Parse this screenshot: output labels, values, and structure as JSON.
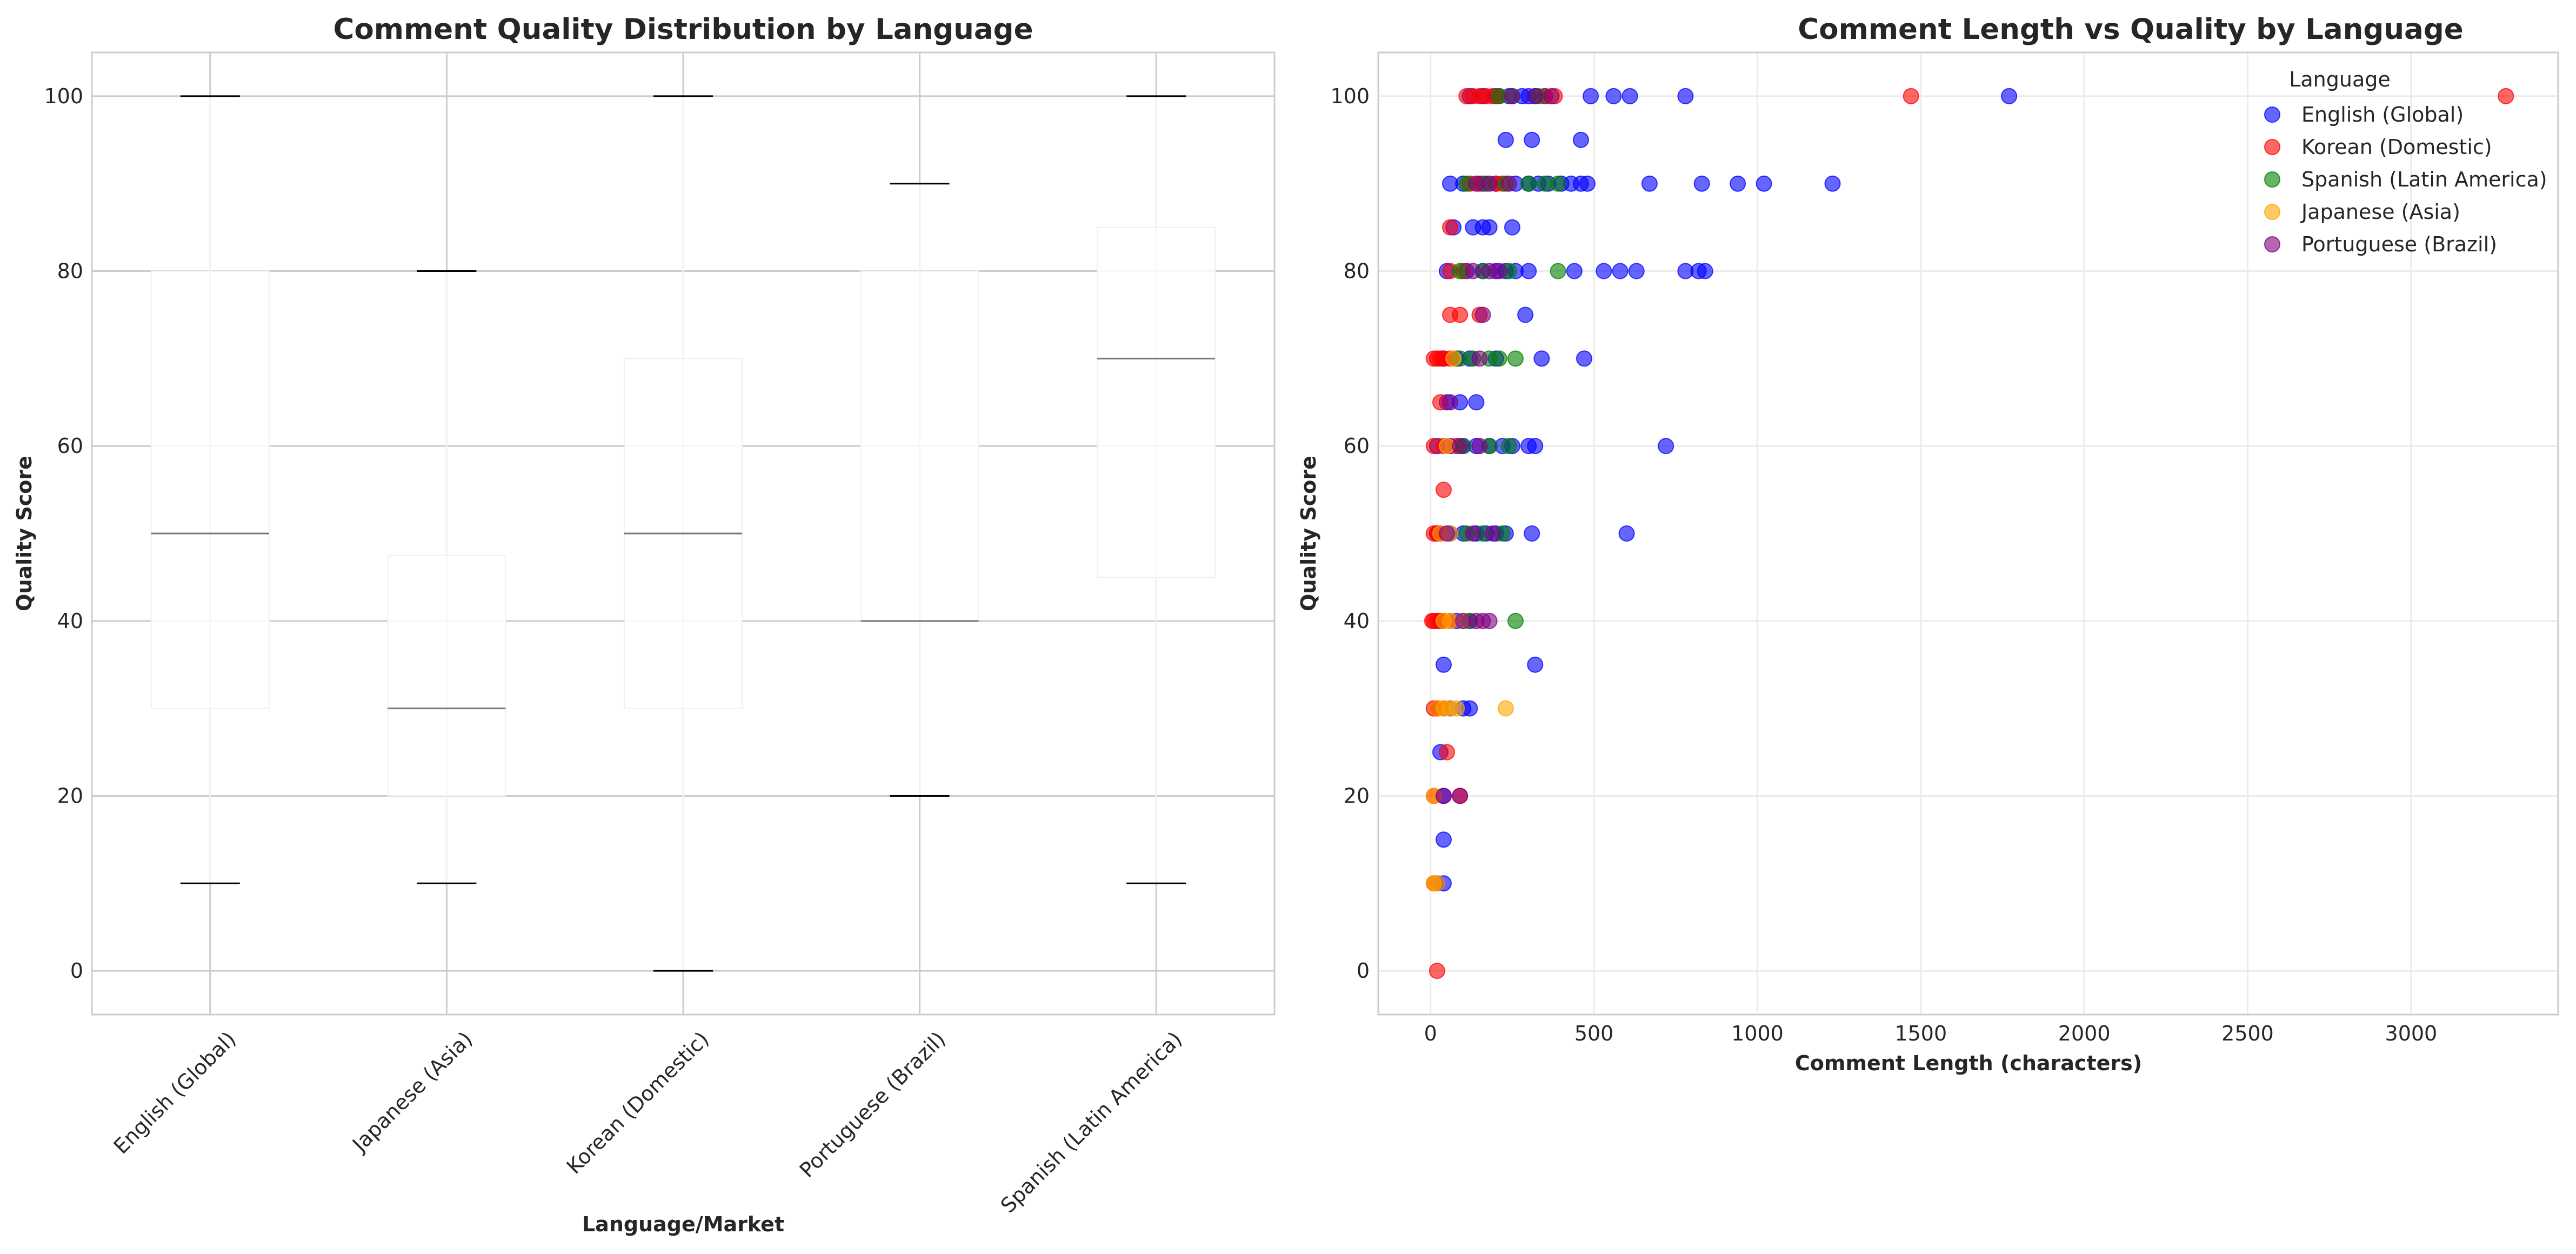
{
  "chart_data": [
    {
      "type": "box",
      "title": "Comment Quality Distribution by Language",
      "xlabel": "Language/Market",
      "ylabel": "Quality Score",
      "ylim": [
        -5,
        105
      ],
      "yticks": [
        0,
        20,
        40,
        60,
        80,
        100
      ],
      "grid": true,
      "categories": [
        "English (Global)",
        "Japanese (Asia)",
        "Korean (Domestic)",
        "Portuguese (Brazil)",
        "Spanish (Latin America)"
      ],
      "boxes": [
        {
          "category": "English (Global)",
          "whisker_low": 10,
          "q1": 30,
          "median": 50,
          "q3": 80,
          "whisker_high": 100
        },
        {
          "category": "Japanese (Asia)",
          "whisker_low": 10,
          "q1": 20,
          "median": 30,
          "q3": 47.5,
          "whisker_high": 80
        },
        {
          "category": "Korean (Domestic)",
          "whisker_low": 0,
          "q1": 30,
          "median": 50,
          "q3": 70,
          "whisker_high": 100
        },
        {
          "category": "Portuguese (Brazil)",
          "whisker_low": 20,
          "q1": 40,
          "median": 40,
          "q3": 80,
          "whisker_high": 90
        },
        {
          "category": "Spanish (Latin America)",
          "whisker_low": 10,
          "q1": 45,
          "median": 70,
          "q3": 85,
          "whisker_high": 100
        }
      ]
    },
    {
      "type": "scatter",
      "title": "Comment Length vs Quality by Language",
      "xlabel": "Comment Length (characters)",
      "ylabel": "Quality Score",
      "xlim": [
        -160,
        3450
      ],
      "ylim": [
        -5,
        105
      ],
      "xticks": [
        0,
        500,
        1000,
        1500,
        2000,
        2500,
        3000
      ],
      "yticks": [
        0,
        20,
        40,
        60,
        80,
        100
      ],
      "grid": true,
      "legend_title": "Language",
      "legend_position": "top-right",
      "series": [
        {
          "name": "English (Global)",
          "color": "#0000ff",
          "points": [
            [
              120,
              100
            ],
            [
              160,
              100
            ],
            [
              200,
              100
            ],
            [
              240,
              100
            ],
            [
              280,
              100
            ],
            [
              300,
              100
            ],
            [
              320,
              100
            ],
            [
              350,
              100
            ],
            [
              490,
              100
            ],
            [
              560,
              100
            ],
            [
              610,
              100
            ],
            [
              780,
              100
            ],
            [
              1770,
              100
            ],
            [
              230,
              95
            ],
            [
              310,
              95
            ],
            [
              460,
              95
            ],
            [
              60,
              90
            ],
            [
              100,
              90
            ],
            [
              160,
              90
            ],
            [
              200,
              90
            ],
            [
              260,
              90
            ],
            [
              300,
              90
            ],
            [
              330,
              90
            ],
            [
              360,
              90
            ],
            [
              400,
              90
            ],
            [
              430,
              90
            ],
            [
              460,
              90
            ],
            [
              480,
              90
            ],
            [
              670,
              90
            ],
            [
              830,
              90
            ],
            [
              940,
              90
            ],
            [
              1020,
              90
            ],
            [
              1230,
              90
            ],
            [
              70,
              85
            ],
            [
              130,
              85
            ],
            [
              160,
              85
            ],
            [
              180,
              85
            ],
            [
              250,
              85
            ],
            [
              50,
              80
            ],
            [
              110,
              80
            ],
            [
              160,
              80
            ],
            [
              200,
              80
            ],
            [
              230,
              80
            ],
            [
              260,
              80
            ],
            [
              300,
              80
            ],
            [
              440,
              80
            ],
            [
              530,
              80
            ],
            [
              580,
              80
            ],
            [
              630,
              80
            ],
            [
              780,
              80
            ],
            [
              820,
              80
            ],
            [
              840,
              80
            ],
            [
              290,
              75
            ],
            [
              40,
              70
            ],
            [
              80,
              70
            ],
            [
              120,
              70
            ],
            [
              200,
              70
            ],
            [
              340,
              70
            ],
            [
              470,
              70
            ],
            [
              50,
              65
            ],
            [
              90,
              65
            ],
            [
              140,
              65
            ],
            [
              20,
              60
            ],
            [
              60,
              60
            ],
            [
              100,
              60
            ],
            [
              140,
              60
            ],
            [
              180,
              60
            ],
            [
              220,
              60
            ],
            [
              250,
              60
            ],
            [
              300,
              60
            ],
            [
              320,
              60
            ],
            [
              720,
              60
            ],
            [
              20,
              50
            ],
            [
              60,
              50
            ],
            [
              100,
              50
            ],
            [
              140,
              50
            ],
            [
              170,
              50
            ],
            [
              200,
              50
            ],
            [
              230,
              50
            ],
            [
              310,
              50
            ],
            [
              600,
              50
            ],
            [
              30,
              40
            ],
            [
              80,
              40
            ],
            [
              120,
              40
            ],
            [
              40,
              35
            ],
            [
              320,
              35
            ],
            [
              20,
              30
            ],
            [
              60,
              30
            ],
            [
              100,
              30
            ],
            [
              120,
              30
            ],
            [
              30,
              25
            ],
            [
              40,
              20
            ],
            [
              40,
              15
            ],
            [
              20,
              10
            ],
            [
              40,
              10
            ]
          ]
        },
        {
          "name": "Korean (Domestic)",
          "color": "#ff0000",
          "points": [
            [
              110,
              100
            ],
            [
              130,
              100
            ],
            [
              150,
              100
            ],
            [
              170,
              100
            ],
            [
              190,
              100
            ],
            [
              210,
              100
            ],
            [
              350,
              100
            ],
            [
              380,
              100
            ],
            [
              1470,
              100
            ],
            [
              3290,
              100
            ],
            [
              120,
              90
            ],
            [
              150,
              90
            ],
            [
              200,
              90
            ],
            [
              220,
              90
            ],
            [
              60,
              85
            ],
            [
              60,
              80
            ],
            [
              100,
              80
            ],
            [
              60,
              75
            ],
            [
              90,
              75
            ],
            [
              150,
              75
            ],
            [
              10,
              70
            ],
            [
              20,
              70
            ],
            [
              30,
              70
            ],
            [
              40,
              70
            ],
            [
              60,
              70
            ],
            [
              30,
              65
            ],
            [
              10,
              60
            ],
            [
              40,
              60
            ],
            [
              80,
              60
            ],
            [
              40,
              55
            ],
            [
              10,
              50
            ],
            [
              20,
              50
            ],
            [
              30,
              50
            ],
            [
              5,
              40
            ],
            [
              10,
              40
            ],
            [
              20,
              40
            ],
            [
              30,
              40
            ],
            [
              40,
              40
            ],
            [
              60,
              40
            ],
            [
              10,
              30
            ],
            [
              20,
              30
            ],
            [
              40,
              30
            ],
            [
              50,
              25
            ],
            [
              10,
              20
            ],
            [
              90,
              20
            ],
            [
              10,
              10
            ],
            [
              20,
              0
            ]
          ]
        },
        {
          "name": "Spanish (Latin America)",
          "color": "#008000",
          "points": [
            [
              210,
              100
            ],
            [
              250,
              100
            ],
            [
              330,
              100
            ],
            [
              110,
              90
            ],
            [
              170,
              90
            ],
            [
              230,
              90
            ],
            [
              300,
              90
            ],
            [
              350,
              90
            ],
            [
              390,
              90
            ],
            [
              90,
              80
            ],
            [
              160,
              80
            ],
            [
              240,
              80
            ],
            [
              390,
              80
            ],
            [
              90,
              70
            ],
            [
              130,
              70
            ],
            [
              180,
              70
            ],
            [
              210,
              70
            ],
            [
              260,
              70
            ],
            [
              100,
              60
            ],
            [
              180,
              60
            ],
            [
              240,
              60
            ],
            [
              110,
              50
            ],
            [
              160,
              50
            ],
            [
              220,
              50
            ],
            [
              120,
              40
            ],
            [
              260,
              40
            ]
          ]
        },
        {
          "name": "Japanese (Asia)",
          "color": "#ffa500",
          "points": [
            [
              70,
              70
            ],
            [
              50,
              60
            ],
            [
              30,
              50
            ],
            [
              60,
              50
            ],
            [
              40,
              40
            ],
            [
              60,
              40
            ],
            [
              100,
              40
            ],
            [
              20,
              30
            ],
            [
              40,
              30
            ],
            [
              60,
              30
            ],
            [
              80,
              30
            ],
            [
              230,
              30
            ],
            [
              10,
              20
            ],
            [
              10,
              10
            ],
            [
              20,
              10
            ]
          ]
        },
        {
          "name": "Portuguese (Brazil)",
          "color": "#800080",
          "points": [
            [
              250,
              100
            ],
            [
              320,
              100
            ],
            [
              370,
              100
            ],
            [
              140,
              90
            ],
            [
              180,
              90
            ],
            [
              240,
              90
            ],
            [
              130,
              80
            ],
            [
              180,
              80
            ],
            [
              210,
              80
            ],
            [
              160,
              75
            ],
            [
              150,
              70
            ],
            [
              60,
              65
            ],
            [
              90,
              60
            ],
            [
              150,
              60
            ],
            [
              50,
              50
            ],
            [
              130,
              50
            ],
            [
              190,
              50
            ],
            [
              100,
              40
            ],
            [
              140,
              40
            ],
            [
              160,
              40
            ],
            [
              180,
              40
            ],
            [
              40,
              20
            ],
            [
              90,
              20
            ]
          ]
        }
      ]
    }
  ]
}
